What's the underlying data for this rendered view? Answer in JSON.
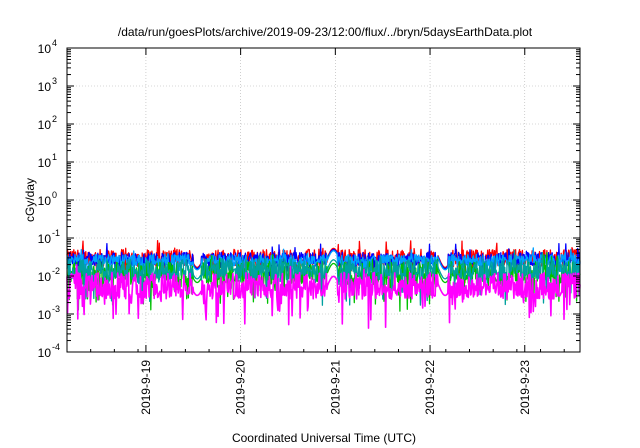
{
  "chart_data": {
    "type": "line",
    "title": "/data/run/goesPlots/archive/2019-09-23/12:00/flux/../bryn/5daysEarthData.plot",
    "xlabel": "Coordinated Universal Time (UTC)",
    "ylabel": "cGy/day",
    "yscale": "log",
    "ylim": [
      0.0001,
      10000
    ],
    "y_ticks": [
      {
        "base": "10",
        "exp": "-4"
      },
      {
        "base": "10",
        "exp": "-3"
      },
      {
        "base": "10",
        "exp": "-2"
      },
      {
        "base": "10",
        "exp": "-1"
      },
      {
        "base": "10",
        "exp": "0"
      },
      {
        "base": "10",
        "exp": "1"
      },
      {
        "base": "10",
        "exp": "2"
      },
      {
        "base": "10",
        "exp": "3"
      },
      {
        "base": "10",
        "exp": "4"
      }
    ],
    "xlim": [
      "2019-09-18T04:00",
      "2019-09-23T14:00"
    ],
    "x_ticks": [
      "2019-9-19",
      "2019-9-20",
      "2019-9-21",
      "2019-9-22",
      "2019-9-23"
    ],
    "grid": true,
    "legend": "none",
    "series": [
      {
        "color": "#ff0000",
        "base": 0.03,
        "spread": 0.45,
        "dips": 0.35
      },
      {
        "color": "#0000ff",
        "base": 0.028,
        "spread": 0.35,
        "dips": 0.3
      },
      {
        "color": "#00a0ff",
        "base": 0.026,
        "spread": 0.3,
        "dips": 0.3
      },
      {
        "color": "#00c000",
        "base": 0.012,
        "spread": 0.6,
        "dips": 0.5
      },
      {
        "color": "#00a0a0",
        "base": 0.015,
        "spread": 0.55,
        "dips": 0.5
      },
      {
        "color": "#ff00ff",
        "base": 0.0055,
        "spread": 0.7,
        "dips": 0.6
      }
    ],
    "gaps": [
      [
        "2019-09-19T12:00",
        "2019-09-19T14:00"
      ],
      [
        "2019-09-20T22:00",
        "2019-09-21T00:30"
      ],
      [
        "2019-09-22T02:00",
        "2019-09-22T04:30"
      ]
    ]
  }
}
